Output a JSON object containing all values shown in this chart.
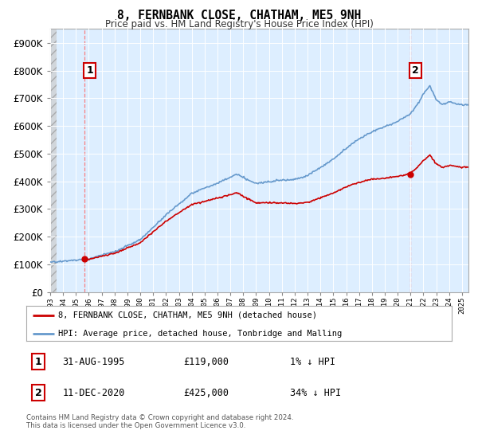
{
  "title": "8, FERNBANK CLOSE, CHATHAM, ME5 9NH",
  "subtitle": "Price paid vs. HM Land Registry's House Price Index (HPI)",
  "hpi_label": "HPI: Average price, detached house, Tonbridge and Malling",
  "property_label": "8, FERNBANK CLOSE, CHATHAM, ME5 9NH (detached house)",
  "red_line_color": "#cc0000",
  "blue_line_color": "#6699cc",
  "annotation_box_color": "#cc0000",
  "plot_bg_color": "#ddeeff",
  "hatch_bg_color": "#cccccc",
  "grid_color": "#ffffff",
  "ylim": [
    0,
    950000
  ],
  "yticks": [
    0,
    100000,
    200000,
    300000,
    400000,
    500000,
    600000,
    700000,
    800000,
    900000
  ],
  "xlim_start": 1993.0,
  "xlim_end": 2025.5,
  "t1": 1995.667,
  "t2": 2020.958,
  "price1": 119000,
  "price2": 425000,
  "footnote": "Contains HM Land Registry data © Crown copyright and database right 2024.\nThis data is licensed under the Open Government Licence v3.0.",
  "annotation1_date": "31-AUG-1995",
  "annotation1_value": "£119,000",
  "annotation1_pct": "1% ↓ HPI",
  "annotation2_date": "11-DEC-2020",
  "annotation2_value": "£425,000",
  "annotation2_pct": "34% ↓ HPI"
}
